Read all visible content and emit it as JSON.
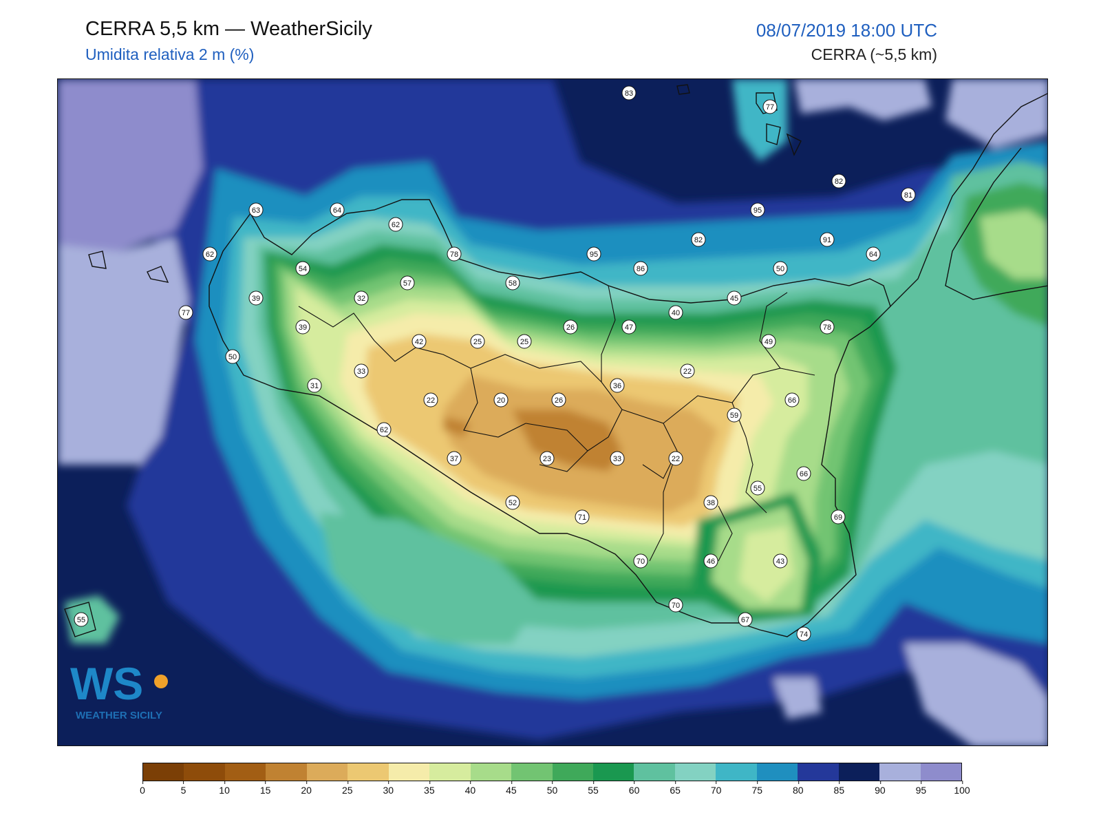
{
  "header": {
    "title": "CERRA 5,5 km — WeatherSicily",
    "subtitle": "Umidita relativa 2 m (%)",
    "datetime": "08/07/2019 18:00 UTC",
    "source": "CERRA (~5,5 km)"
  },
  "logo": {
    "mark": "WS",
    "text": "WEATHER SICILY"
  },
  "colors": {
    "sea_dark": "#0c1f5a",
    "sea_blue": "#24389a",
    "outline": "#111111"
  },
  "stations": [
    {
      "value": "83"
    },
    {
      "value": "77"
    },
    {
      "value": "82"
    },
    {
      "value": "81"
    },
    {
      "value": "95"
    },
    {
      "value": "91"
    },
    {
      "value": "63"
    },
    {
      "value": "64"
    },
    {
      "value": "62"
    },
    {
      "value": "62"
    },
    {
      "value": "78"
    },
    {
      "value": "95"
    },
    {
      "value": "86"
    },
    {
      "value": "82"
    },
    {
      "value": "64"
    },
    {
      "value": "50"
    },
    {
      "value": "54"
    },
    {
      "value": "57"
    },
    {
      "value": "58"
    },
    {
      "value": "39"
    },
    {
      "value": "32"
    },
    {
      "value": "45"
    },
    {
      "value": "77"
    },
    {
      "value": "40"
    },
    {
      "value": "39"
    },
    {
      "value": "26"
    },
    {
      "value": "47"
    },
    {
      "value": "78"
    },
    {
      "value": "42"
    },
    {
      "value": "25"
    },
    {
      "value": "25"
    },
    {
      "value": "49"
    },
    {
      "value": "50"
    },
    {
      "value": "33"
    },
    {
      "value": "22"
    },
    {
      "value": "31"
    },
    {
      "value": "36"
    },
    {
      "value": "66"
    },
    {
      "value": "22"
    },
    {
      "value": "20"
    },
    {
      "value": "26"
    },
    {
      "value": "59"
    },
    {
      "value": "62"
    },
    {
      "value": "37"
    },
    {
      "value": "23"
    },
    {
      "value": "33"
    },
    {
      "value": "22"
    },
    {
      "value": "66"
    },
    {
      "value": "55"
    },
    {
      "value": "52"
    },
    {
      "value": "38"
    },
    {
      "value": "71"
    },
    {
      "value": "69"
    },
    {
      "value": "70"
    },
    {
      "value": "46"
    },
    {
      "value": "43"
    },
    {
      "value": "70"
    },
    {
      "value": "67"
    },
    {
      "value": "74"
    },
    {
      "value": "55"
    }
  ],
  "legend": {
    "ticks": [
      "0",
      "5",
      "10",
      "15",
      "20",
      "25",
      "30",
      "35",
      "40",
      "45",
      "50",
      "55",
      "60",
      "65",
      "70",
      "75",
      "80",
      "85",
      "90",
      "95",
      "100"
    ],
    "colors": [
      "#7b3f06",
      "#8e4c0a",
      "#a25e14",
      "#c08232",
      "#dcab5a",
      "#ecc872",
      "#f5ecaa",
      "#d6ec9e",
      "#a7dc8a",
      "#72c472",
      "#3fa95a",
      "#1a9850",
      "#5fc19f",
      "#83d2c2",
      "#3fb6c6",
      "#1f8fbf",
      "#24389a",
      "#0c1f5a",
      "#a8b0dc",
      "#8e8ccc"
    ]
  }
}
